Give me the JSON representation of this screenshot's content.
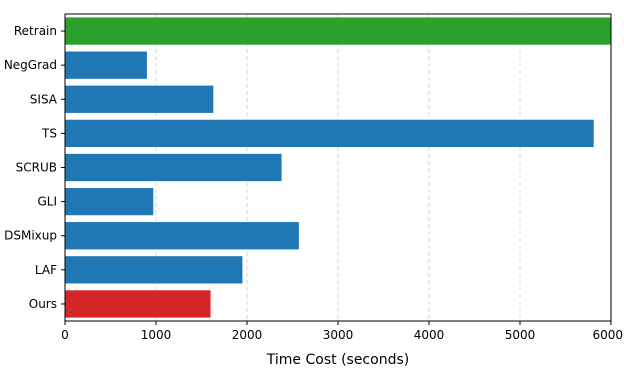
{
  "chart_data": {
    "type": "bar",
    "orientation": "horizontal",
    "categories": [
      "Retrain",
      "NegGrad",
      "SISA",
      "TS",
      "SCRUB",
      "GLI",
      "DSMixup",
      "LAF",
      "Ours"
    ],
    "values": [
      6000,
      900,
      1630,
      5810,
      2380,
      970,
      2570,
      1950,
      1600
    ],
    "bar_colors": [
      "#2ca02c",
      "#1f77b4",
      "#1f77b4",
      "#1f77b4",
      "#1f77b4",
      "#1f77b4",
      "#1f77b4",
      "#1f77b4",
      "#d62728"
    ],
    "xlabel": "Time Cost (seconds)",
    "ylabel": "",
    "title": "",
    "xlim": [
      0,
      6000
    ],
    "xticks": [
      0,
      1000,
      2000,
      3000,
      4000,
      5000,
      6000
    ],
    "xtick_labels": [
      "0",
      "1000",
      "2000",
      "3000",
      "4000",
      "5000",
      "6000"
    ],
    "grid": "x-dashed"
  }
}
